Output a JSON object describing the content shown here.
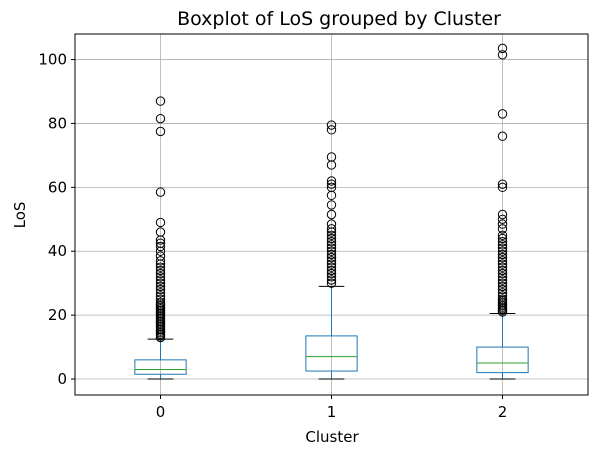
{
  "chart_data": {
    "type": "boxplot",
    "title": "Boxplot of LoS grouped by Cluster",
    "xlabel": "Cluster",
    "ylabel": "LoS",
    "categories": [
      "0",
      "1",
      "2"
    ],
    "ylim": [
      -5,
      108
    ],
    "yticks": [
      0,
      20,
      40,
      60,
      80,
      100
    ],
    "grid": true,
    "colors": {
      "box": "#1f77b4",
      "median": "#2ca02c",
      "whisker": "#1f77b4",
      "cap": "#000000",
      "flier": "#000000",
      "grid": "#b0b0b0"
    },
    "boxes": [
      {
        "category": "0",
        "whisker_low": 0,
        "q1": 1.5,
        "median": 3,
        "q3": 6,
        "whisker_high": 12.5,
        "outliers": [
          13,
          13.5,
          14,
          14.5,
          15,
          15.5,
          16,
          16.5,
          17,
          17.5,
          18,
          18.5,
          19,
          19.5,
          20,
          20.5,
          21,
          21.5,
          22,
          22.5,
          23,
          23.5,
          24,
          25,
          26,
          27,
          28,
          29,
          30,
          31,
          32,
          33,
          34,
          35,
          36,
          37,
          38.5,
          40,
          41.5,
          42.5,
          43.5,
          46,
          49,
          58.5,
          77.5,
          81.5,
          87
        ]
      },
      {
        "category": "1",
        "whisker_low": 0,
        "q1": 2.5,
        "median": 7,
        "q3": 13.5,
        "whisker_high": 29,
        "outliers": [
          30,
          31,
          32,
          33,
          34,
          35,
          36,
          37,
          38,
          39,
          40,
          41,
          42,
          43,
          44,
          45,
          46,
          47,
          48.5,
          51.5,
          54.5,
          57.5,
          60,
          61,
          62,
          67,
          69.5,
          78,
          79.5
        ]
      },
      {
        "category": "2",
        "whisker_low": 0,
        "q1": 2,
        "median": 5,
        "q3": 10,
        "whisker_high": 20.5,
        "outliers": [
          21,
          21.5,
          22,
          22.5,
          23,
          23.5,
          24,
          24.5,
          25,
          26,
          27,
          28,
          29,
          30,
          31,
          32,
          33,
          34,
          35,
          36,
          37,
          38,
          39,
          40,
          41,
          42,
          43,
          44,
          45,
          47,
          48.5,
          50,
          51.5,
          60,
          61,
          76,
          83,
          101.5,
          103.5
        ]
      }
    ]
  }
}
